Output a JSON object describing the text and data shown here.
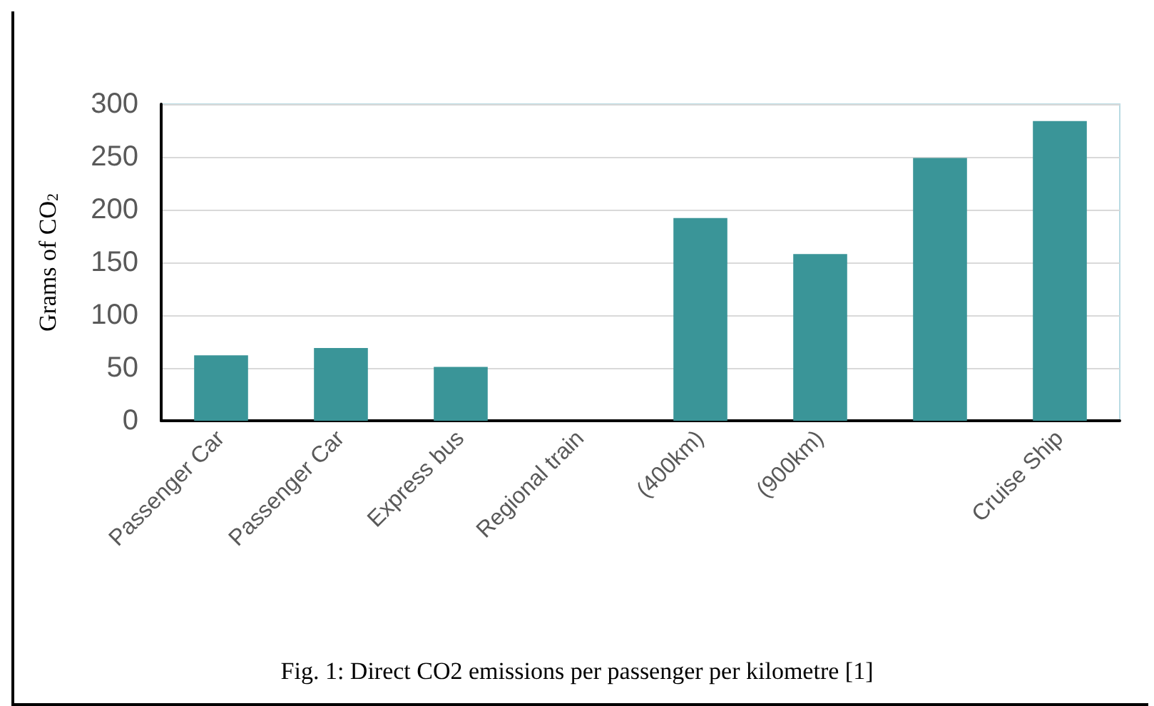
{
  "chart_data": {
    "type": "bar",
    "ylabel": "Grams of CO$_{2}$",
    "categories": [
      "Passenger Car",
      "Passenger Car",
      "Express bus",
      "Regional train",
      "(400km)",
      "(900km)",
      null,
      "Cruise Ship"
    ],
    "values": [
      62,
      69,
      51,
      0,
      192,
      158,
      249,
      284
    ],
    "color": "#3a9598",
    "ylim": [
      0,
      300
    ],
    "yticks": [
      0,
      50,
      100,
      150,
      200,
      250,
      300
    ],
    "grid": "y",
    "annotations": [
      "Fig. 1: Direct CO2 emissions per passenger per kilometre [1]"
    ]
  }
}
